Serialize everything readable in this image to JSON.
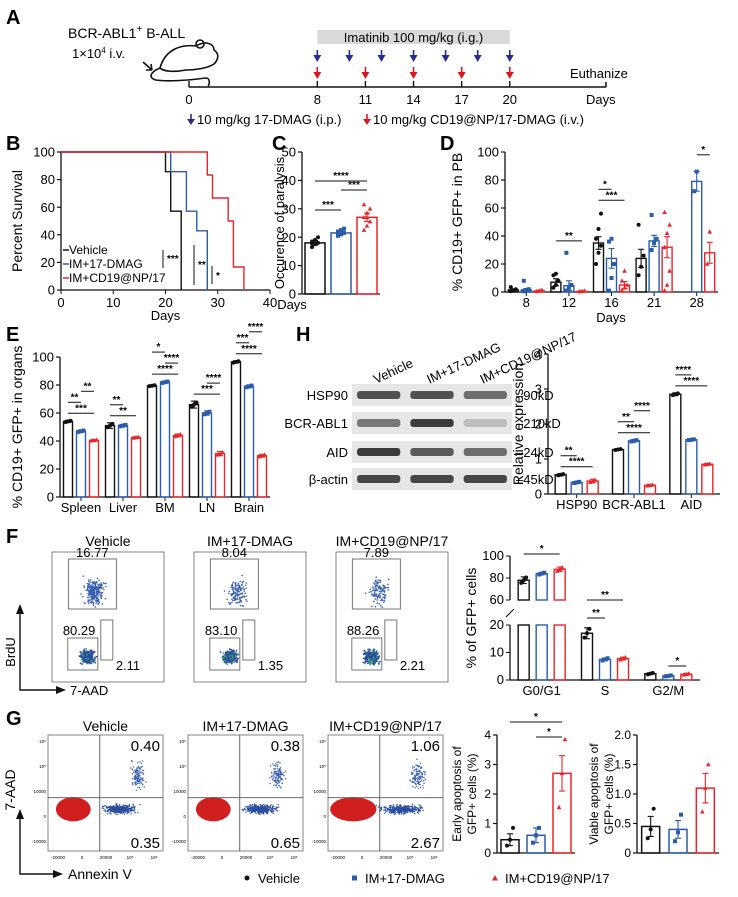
{
  "colors": {
    "vehicle": "#111111",
    "im17": "#2a5caa",
    "imcd19": "#e8262b",
    "blue_arrow": "#2b2d8a",
    "red_arrow": "#d7191f",
    "band": "#d9d9d9"
  },
  "panel_labels": {
    "A": "A",
    "B": "B",
    "C": "C",
    "D": "D",
    "E": "E",
    "F": "F",
    "G": "G",
    "H": "H"
  },
  "panelA": {
    "cell_line": "BCR-ABL1",
    "cell_line_sup": "+",
    "cell_line_rest": " B-ALL",
    "dose_prefix": "1×10",
    "dose_exp": "4",
    "dose_suffix": " i.v.",
    "imatinib_band": "Imatinib 100 mg/kg (i.g.)",
    "timeline_ticks": [
      "0",
      "8",
      "11",
      "14",
      "17",
      "20"
    ],
    "timeline_tick_days": [
      0,
      8,
      11,
      14,
      17,
      20
    ],
    "timeline_end_day": 26,
    "blue_arrow_days": [
      8,
      10,
      12,
      14,
      16,
      18,
      20
    ],
    "red_arrow_days": [
      8,
      11,
      14,
      17,
      20
    ],
    "euthanize": "Euthanize",
    "days_label": "Days",
    "legend_blue": "10 mg/kg 17-DMAG (i.p.)",
    "legend_red": "10 mg/kg CD19@NP/17-DMAG (i.v.)"
  },
  "legend_bottom": {
    "vehicle": "Vehicle",
    "im17": "IM+17-DMAG",
    "imcd19": "IM+CD19@NP/17"
  },
  "chart_data": [
    {
      "id": "B",
      "type": "line",
      "title": "",
      "xlabel": "Days",
      "ylabel": "Percent Survival",
      "xlim": [
        0,
        40
      ],
      "ylim": [
        0,
        100
      ],
      "xticks": [
        "0",
        "10",
        "20",
        "30",
        "40"
      ],
      "yticks": [
        "0",
        "20",
        "40",
        "60",
        "80",
        "100"
      ],
      "legend": [
        "Vehicle",
        "IM+17-DMAG",
        "IM+CD19@NP/17"
      ],
      "legend_position": "bottom-left",
      "series": [
        {
          "name": "Vehicle",
          "steps": [
            [
              0,
              100
            ],
            [
              20,
              100
            ],
            [
              20,
              85.7
            ],
            [
              21,
              85.7
            ],
            [
              21,
              57.1
            ],
            [
              23,
              57.1
            ],
            [
              23,
              0
            ]
          ]
        },
        {
          "name": "IM+17-DMAG",
          "steps": [
            [
              0,
              100
            ],
            [
              21,
              100
            ],
            [
              21,
              85.7
            ],
            [
              24,
              85.7
            ],
            [
              24,
              57.1
            ],
            [
              26,
              57.1
            ],
            [
              26,
              42.9
            ],
            [
              28,
              42.9
            ],
            [
              28,
              0
            ]
          ]
        },
        {
          "name": "IM+CD19@NP/17",
          "steps": [
            [
              0,
              100
            ],
            [
              28,
              100
            ],
            [
              28,
              83.3
            ],
            [
              29,
              83.3
            ],
            [
              29,
              66.7
            ],
            [
              32,
              66.7
            ],
            [
              32,
              50
            ],
            [
              33,
              50
            ],
            [
              33,
              16.7
            ],
            [
              35,
              16.7
            ],
            [
              35,
              0
            ]
          ]
        }
      ],
      "annotations": [
        "***",
        "**",
        "*"
      ]
    },
    {
      "id": "C",
      "type": "bar",
      "xlabel": "Days",
      "ylabel": "Occurence of paralysis",
      "ylim": [
        0,
        50
      ],
      "yticks": [
        "0",
        "10",
        "20",
        "30",
        "40",
        "50"
      ],
      "categories": [
        "Vehicle",
        "IM+17-DMAG",
        "IM+CD19@NP/17"
      ],
      "values": [
        18,
        21.5,
        27
      ],
      "errors": [
        0.8,
        0.6,
        1.5
      ],
      "points": [
        [
          16.5,
          17.5,
          18,
          18.5,
          19,
          20,
          17.8
        ],
        [
          20.5,
          21,
          21.5,
          22,
          22.5,
          23,
          21.8
        ],
        [
          22.5,
          24,
          25.5,
          27,
          28.5,
          30,
          31.5,
          27
        ]
      ],
      "significance": [
        {
          "pair": [
            0,
            2
          ],
          "label": "****"
        },
        {
          "pair": [
            1,
            2
          ],
          "label": "***"
        },
        {
          "pair": [
            0,
            1
          ],
          "label": "***"
        }
      ]
    },
    {
      "id": "D",
      "type": "bar",
      "xlabel": "Days",
      "ylabel": "% CD19+ GFP+ in PB",
      "ylim": [
        0,
        100
      ],
      "yticks": [
        "0",
        "20",
        "40",
        "60",
        "80",
        "100"
      ],
      "categories": [
        "8",
        "12",
        "16",
        "21",
        "28"
      ],
      "series": [
        {
          "name": "Vehicle",
          "values": [
            1.5,
            7,
            35,
            24,
            null
          ],
          "errors": [
            0.8,
            2.5,
            4.5,
            6.5,
            null
          ],
          "points": [
            [
              0.5,
              1,
              2,
              3.5
            ],
            [
              3,
              5,
              8,
              12,
              13
            ],
            [
              20,
              28,
              33,
              38,
              45,
              56
            ],
            [
              12,
              18,
              26,
              48
            ]
          ]
        },
        {
          "name": "IM+17-DMAG",
          "values": [
            1.5,
            4.5,
            24,
            36.5,
            79
          ],
          "errors": [
            1,
            3.5,
            7,
            4,
            7
          ],
          "points": [
            [
              0.5,
              1,
              2,
              8
            ],
            [
              1,
              3,
              5,
              28
            ],
            [
              1,
              10,
              20,
              36,
              38
            ],
            [
              30,
              35,
              38,
              55
            ],
            [
              72,
              86
            ]
          ]
        },
        {
          "name": "IM+CD19@NP/17",
          "values": [
            0.8,
            0.5,
            5,
            32,
            28
          ],
          "errors": [
            0.4,
            0.3,
            2.5,
            7.5,
            7.5
          ],
          "points": [
            [
              0.5,
              1,
              1.5
            ],
            [
              0.3,
              0.6,
              0.8
            ],
            [
              1,
              3,
              5,
              8,
              15
            ],
            [
              1,
              5,
              15,
              32,
              42,
              48,
              57
            ],
            [
              20,
              43
            ]
          ]
        }
      ],
      "significance": [
        {
          "group": "12",
          "pair": [
            0,
            2
          ],
          "label": "**"
        },
        {
          "group": "16",
          "pair": [
            0,
            2
          ],
          "label": "***"
        },
        {
          "group": "16",
          "pair": [
            0,
            1
          ],
          "label": "*"
        },
        {
          "group": "28",
          "pair": [
            1,
            2
          ],
          "label": "*"
        }
      ]
    },
    {
      "id": "E",
      "type": "bar",
      "xlabel": "",
      "ylabel": "% CD19+ GFP+ in organs",
      "ylim": [
        0,
        100
      ],
      "yticks": [
        "0",
        "20",
        "40",
        "60",
        "80",
        "100"
      ],
      "categories": [
        "Spleen",
        "Liver",
        "BM",
        "LN",
        "Brain"
      ],
      "series": [
        {
          "name": "Vehicle",
          "values": [
            54,
            51,
            79.5,
            66,
            96.5
          ],
          "errors": [
            0.8,
            2,
            0.5,
            2.5,
            0.8
          ]
        },
        {
          "name": "IM+17-DMAG",
          "values": [
            47,
            51,
            82,
            60,
            79
          ],
          "errors": [
            0.8,
            0.8,
            0.8,
            1.5,
            1
          ]
        },
        {
          "name": "IM+CD19@NP/17",
          "values": [
            40.5,
            42.5,
            44,
            31,
            29.5
          ],
          "errors": [
            0.5,
            0.5,
            1,
            1.5,
            1
          ]
        }
      ],
      "significance": [
        {
          "group": "Spleen",
          "pair": [
            0,
            2
          ],
          "label": "***"
        },
        {
          "group": "Spleen",
          "pair": [
            0,
            1
          ],
          "label": "**"
        },
        {
          "group": "Spleen",
          "pair": [
            1,
            2
          ],
          "label": "**"
        },
        {
          "group": "Liver",
          "pair": [
            0,
            2
          ],
          "label": "**"
        },
        {
          "group": "Liver",
          "pair": [
            0,
            1
          ],
          "label": "**"
        },
        {
          "group": "BM",
          "pair": [
            0,
            2
          ],
          "label": "****"
        },
        {
          "group": "BM",
          "pair": [
            1,
            2
          ],
          "label": "****"
        },
        {
          "group": "BM",
          "pair": [
            0,
            1
          ],
          "label": "*"
        },
        {
          "group": "LN",
          "pair": [
            0,
            2
          ],
          "label": "***"
        },
        {
          "group": "LN",
          "pair": [
            1,
            2
          ],
          "label": "****"
        },
        {
          "group": "Brain",
          "pair": [
            0,
            2
          ],
          "label": "****"
        },
        {
          "group": "Brain",
          "pair": [
            0,
            1
          ],
          "label": "***"
        },
        {
          "group": "Brain",
          "pair": [
            1,
            2
          ],
          "label": "****"
        }
      ]
    },
    {
      "id": "H-blot",
      "type": "table",
      "lanes": [
        "Vehicle",
        "IM+17-DMAG",
        "IM+CD19@NP/17"
      ],
      "rows": [
        {
          "protein": "HSP90",
          "size": "90kD",
          "intensity": [
            0.75,
            0.75,
            0.6
          ]
        },
        {
          "protein": "BCR-ABL1",
          "size": "210kD",
          "intensity": [
            0.55,
            0.85,
            0.2
          ]
        },
        {
          "protein": "AID",
          "size": "24kD",
          "intensity": [
            0.85,
            0.7,
            0.6
          ]
        },
        {
          "protein": "β-actin",
          "size": "45kD",
          "intensity": [
            0.8,
            0.8,
            0.8
          ]
        }
      ]
    },
    {
      "id": "H",
      "type": "bar",
      "ylabel": "Relative expression",
      "ylim": [
        0,
        4
      ],
      "yticks": [
        "0",
        "1",
        "2",
        "3",
        "4"
      ],
      "categories": [
        "HSP90",
        "BCR-ABL1",
        "AID"
      ],
      "series": [
        {
          "name": "Vehicle",
          "values": [
            0.55,
            1.27,
            2.85
          ],
          "errors": [
            0.03,
            0.02,
            0.04
          ]
        },
        {
          "name": "IM+17-DMAG",
          "values": [
            0.33,
            1.52,
            1.55
          ],
          "errors": [
            0.03,
            0.03,
            0.02
          ]
        },
        {
          "name": "IM+CD19@NP/17",
          "values": [
            0.37,
            0.25,
            0.85
          ],
          "errors": [
            0.05,
            0.02,
            0.02
          ]
        }
      ],
      "significance": [
        {
          "group": "HSP90",
          "pair": [
            0,
            2
          ],
          "label": "****"
        },
        {
          "group": "HSP90",
          "pair": [
            0,
            1
          ],
          "label": "**"
        },
        {
          "group": "BCR-ABL1",
          "pair": [
            0,
            2
          ],
          "label": "****"
        },
        {
          "group": "BCR-ABL1",
          "pair": [
            0,
            1
          ],
          "label": "**"
        },
        {
          "group": "BCR-ABL1",
          "pair": [
            1,
            2
          ],
          "label": "****"
        },
        {
          "group": "AID",
          "pair": [
            0,
            2
          ],
          "label": "****"
        },
        {
          "group": "AID",
          "pair": [
            0,
            1
          ],
          "label": "****"
        }
      ]
    },
    {
      "id": "F-flow",
      "type": "scatter",
      "xlabel": "7-AAD",
      "ylabel": "BrdU",
      "titles": [
        "Vehicle",
        "IM+17-DMAG",
        "IM+CD19@NP/17"
      ],
      "gates": [
        {
          "S": "16.77",
          "G0G1": "80.29",
          "G2M": "2.11"
        },
        {
          "S": "8.04",
          "G0G1": "83.10",
          "G2M": "1.35"
        },
        {
          "S": "7.89",
          "G0G1": "88.26",
          "G2M": "2.21"
        }
      ]
    },
    {
      "id": "F",
      "type": "bar",
      "ylabel": "% of GFP+ cells",
      "y_broken": true,
      "yticks_lower": [
        "0",
        "10",
        "20"
      ],
      "yticks_upper": [
        "60",
        "80",
        "100"
      ],
      "categories": [
        "G0/G1",
        "S",
        "G2/M"
      ],
      "series": [
        {
          "name": "Vehicle",
          "values": [
            78,
            17,
            2.3
          ],
          "errors": [
            3,
            2,
            0.3
          ]
        },
        {
          "name": "IM+17-DMAG",
          "values": [
            84,
            7.5,
            1.5
          ],
          "errors": [
            1,
            0.5,
            0.2
          ]
        },
        {
          "name": "IM+CD19@NP/17",
          "values": [
            88,
            7.8,
            2.1
          ],
          "errors": [
            2,
            0.5,
            0.3
          ]
        }
      ],
      "significance": [
        {
          "group": "G0/G1",
          "pair": [
            0,
            2
          ],
          "label": "*"
        },
        {
          "group": "S",
          "pair": [
            0,
            1
          ],
          "label": "**"
        },
        {
          "group": "S",
          "pair": [
            0,
            2
          ],
          "label": "**"
        },
        {
          "group": "G2/M",
          "pair": [
            1,
            2
          ],
          "label": "*"
        }
      ]
    },
    {
      "id": "G-flow",
      "type": "scatter",
      "xlabel": "Annexin V",
      "ylabel": "7-AAD",
      "titles": [
        "Vehicle",
        "IM+17-DMAG",
        "IM+CD19@NP/17"
      ],
      "quadrants": [
        {
          "upper_right": "0.40",
          "lower_right": "0.35"
        },
        {
          "upper_right": "0.38",
          "lower_right": "0.65"
        },
        {
          "upper_right": "1.06",
          "lower_right": "2.67"
        }
      ],
      "x_ticks": [
        "-20000",
        "0",
        "20000",
        "10⁵",
        "10⁶"
      ],
      "y_ticks": [
        "10⁶",
        "10⁵",
        "10000",
        "0",
        "-10000"
      ]
    },
    {
      "id": "G-early",
      "type": "bar",
      "ylabel": "Early apoptosis of GFP+ cells (%)",
      "ylim": [
        0,
        4
      ],
      "yticks": [
        "0",
        "1",
        "2",
        "3",
        "4"
      ],
      "categories": [
        "Vehicle",
        "IM+17-DMAG",
        "IM+CD19@NP/17"
      ],
      "values": [
        0.45,
        0.6,
        2.7
      ],
      "errors": [
        0.2,
        0.25,
        0.6
      ],
      "points": [
        [
          0.25,
          0.45,
          0.85
        ],
        [
          0.35,
          0.6,
          0.85
        ],
        [
          1.55,
          2.7,
          3.85
        ]
      ],
      "significance": [
        {
          "pair": [
            0,
            2
          ],
          "label": "*"
        },
        {
          "pair": [
            1,
            2
          ],
          "label": "*"
        }
      ]
    },
    {
      "id": "G-viable",
      "type": "bar",
      "ylabel": "Viable apoptosis of GFP+ cells (%)",
      "ylim": [
        0,
        2.0
      ],
      "yticks": [
        "0",
        "0.5",
        "1.0",
        "1.5",
        "2.0"
      ],
      "categories": [
        "Vehicle",
        "IM+17-DMAG",
        "IM+CD19@NP/17"
      ],
      "values": [
        0.45,
        0.4,
        1.1
      ],
      "errors": [
        0.17,
        0.15,
        0.25
      ],
      "points": [
        [
          0.25,
          0.4,
          0.75
        ],
        [
          0.2,
          0.35,
          0.65
        ],
        [
          0.7,
          1.1,
          1.5
        ]
      ],
      "significance": []
    }
  ]
}
